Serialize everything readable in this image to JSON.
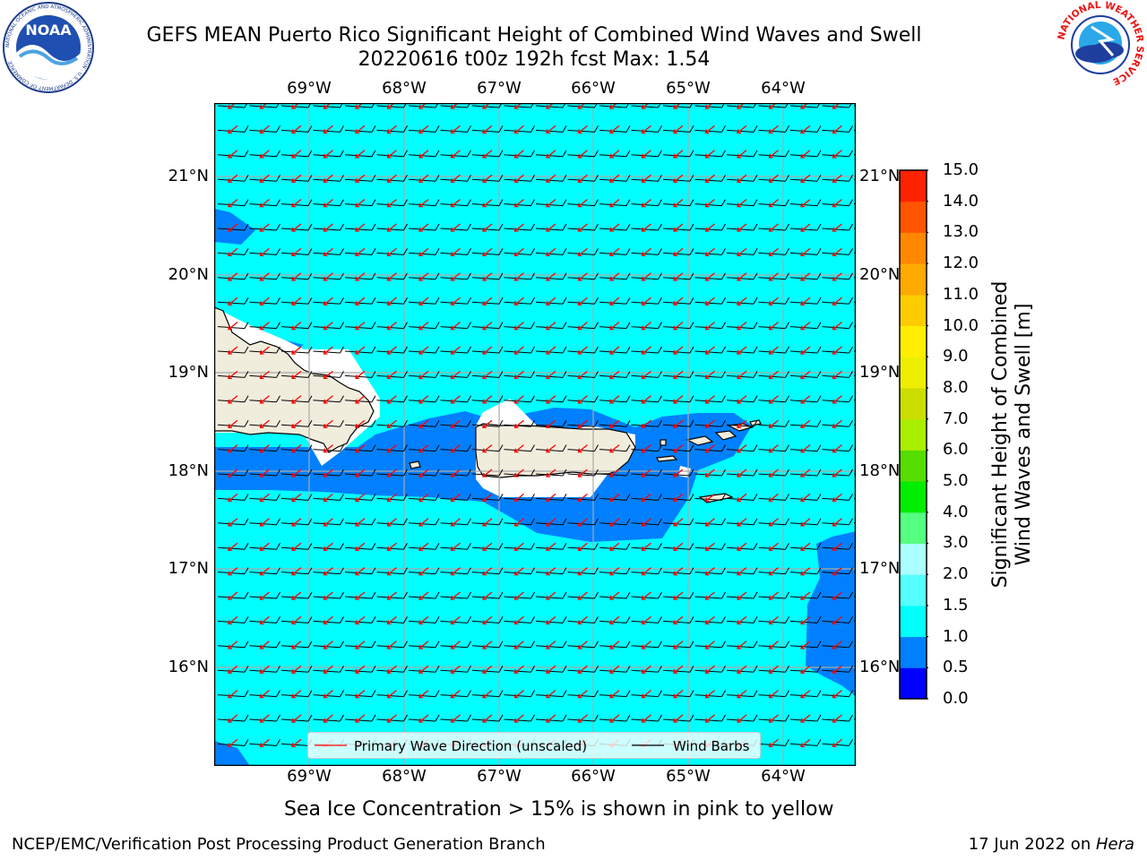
{
  "title": {
    "line1": "GEFS MEAN Puerto Rico Significant Height of Combined Wind Waves and Swell",
    "line2": "20220616 t00z 192h fcst   Max: 1.54"
  },
  "logos": {
    "left": {
      "text": "NOAA",
      "ring_text": "NATIONAL OCEANIC AND ATMOSPHERIC ADMINISTRATION · U.S. DEPARTMENT OF COMMERCE"
    },
    "right": {
      "ring_text": "NATIONAL WEATHER SERVICE"
    }
  },
  "map": {
    "lon_labels": [
      "69°W",
      "68°W",
      "67°W",
      "66°W",
      "65°W",
      "64°W"
    ],
    "lat_labels": [
      "21°N",
      "20°N",
      "19°N",
      "18°N",
      "17°N",
      "16°N"
    ],
    "colors": {
      "ocean": "#00ffff",
      "shallow": "#0080ff",
      "land": "#f0eddc",
      "gap": "#ffffff",
      "barb": "#000000",
      "wave_arrow": "#ff0000"
    }
  },
  "legend": {
    "wave_label": "Primary Wave Direction (unscaled)",
    "barb_label": "Wind Barbs"
  },
  "colorbar": {
    "label_line1": "Significant Height of Combined",
    "label_line2": "Wind Waves and Swell [m]",
    "ticks": [
      "0.0",
      "0.5",
      "1.0",
      "1.5",
      "2.0",
      "3.0",
      "4.0",
      "5.0",
      "6.0",
      "7.0",
      "8.0",
      "9.0",
      "10.0",
      "11.0",
      "12.0",
      "13.0",
      "14.0",
      "15.0"
    ],
    "colors": [
      "#0000ff",
      "#0080ff",
      "#00ffff",
      "#55ffff",
      "#aaffff",
      "#55ff80",
      "#00ee00",
      "#55dd00",
      "#aaee00",
      "#ccdd00",
      "#eeee00",
      "#ffee00",
      "#ffcc00",
      "#ffaa00",
      "#ff8800",
      "#ff5500",
      "#ff2200"
    ]
  },
  "notes": {
    "sea_ice": "Sea Ice Concentration > 15% is shown in pink to yellow",
    "left_footer": "NCEP/EMC/Verification Post Processing Product Generation Branch",
    "date": "17 Jun 2022 on ",
    "host": "Hera"
  }
}
